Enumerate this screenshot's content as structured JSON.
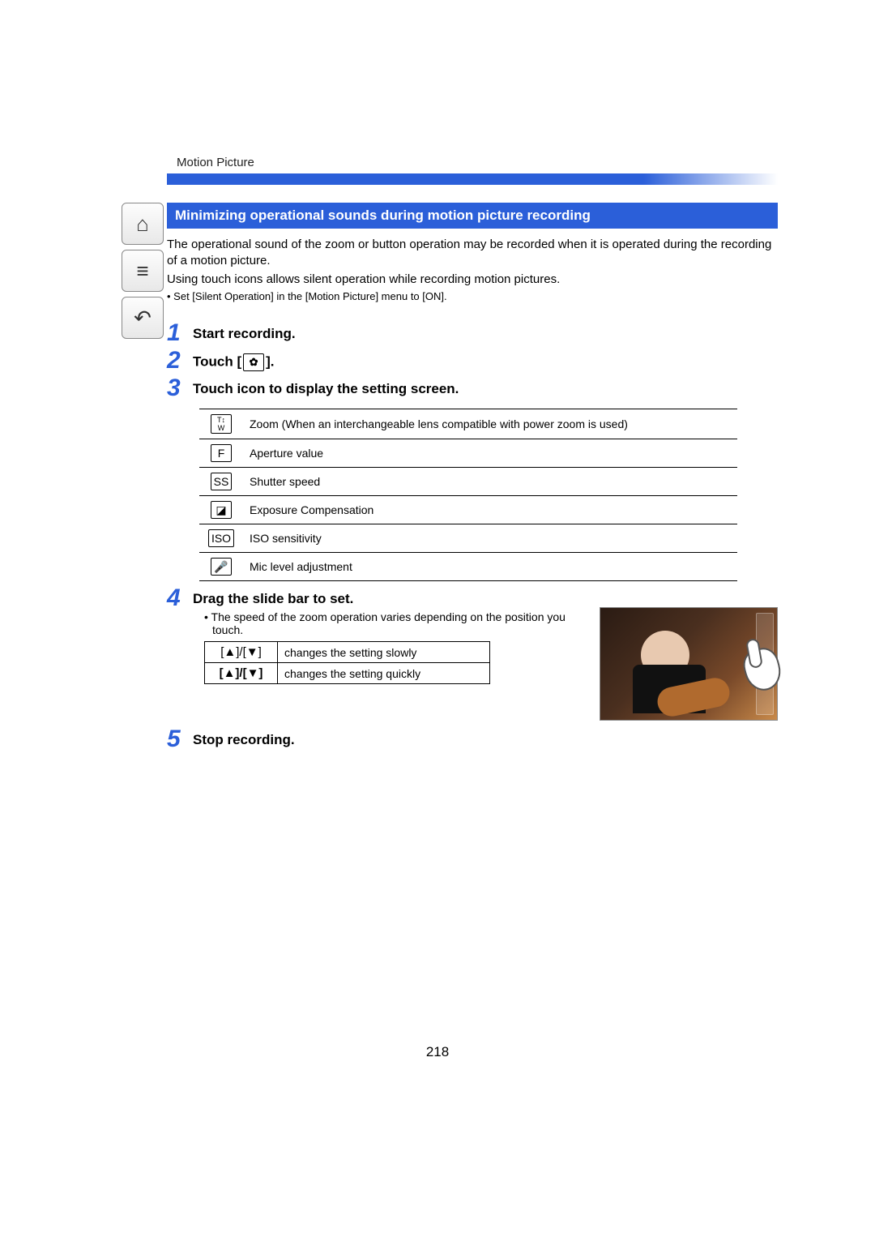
{
  "header": {
    "section": "Motion Picture"
  },
  "title_bar": "Minimizing operational sounds during motion picture recording",
  "intro": {
    "p1": "The operational sound of the zoom or button operation may be recorded when it is operated during the recording of a motion picture.",
    "p2": "Using touch icons allows silent operation while recording motion pictures.",
    "bullet": "• Set [Silent Operation] in the [Motion Picture] menu to [ON]."
  },
  "steps": {
    "s1": {
      "num": "1",
      "title": "Start recording."
    },
    "s2": {
      "num": "2",
      "title_prefix": "Touch [",
      "title_suffix": "].",
      "icon_glyph": "✿"
    },
    "s3": {
      "num": "3",
      "title": "Touch icon to display the setting screen."
    },
    "s4": {
      "num": "4",
      "title": "Drag the slide bar to set.",
      "note": "• The speed of the zoom operation varies depending on the position you touch."
    },
    "s5": {
      "num": "5",
      "title": "Stop recording."
    }
  },
  "icon_table": [
    {
      "glyph": "T↕\nW",
      "glyph_small": true,
      "desc": "Zoom (When an interchangeable lens compatible with power zoom is used)"
    },
    {
      "glyph": "F",
      "desc": "Aperture value"
    },
    {
      "glyph": "SS",
      "desc": "Shutter speed"
    },
    {
      "glyph": "◪",
      "desc": "Exposure Compensation"
    },
    {
      "glyph": "ISO",
      "desc": "ISO sensitivity"
    },
    {
      "glyph": "🎤",
      "desc": "Mic level adjustment"
    }
  ],
  "speed_table": [
    {
      "sym": "[▲]/[▼]",
      "desc": "changes the setting slowly"
    },
    {
      "sym": "[▲]/[▼]",
      "bold": true,
      "desc": "changes the setting quickly"
    }
  ],
  "page_number": "218",
  "sidebar": {
    "home": "⌂",
    "list": "≡",
    "back": "↶"
  }
}
